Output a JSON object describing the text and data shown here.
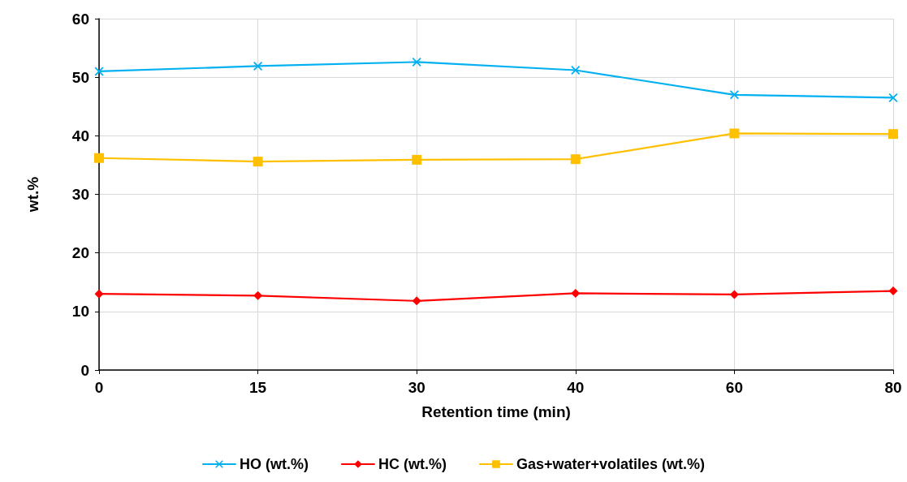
{
  "chart_data": {
    "type": "line",
    "xlabel": "Retention time (min)",
    "ylabel": "wt.%",
    "categories": [
      "0",
      "15",
      "30",
      "40",
      "60",
      "80"
    ],
    "ylim": [
      0,
      60
    ],
    "yticks": [
      0,
      10,
      20,
      30,
      40,
      50,
      60
    ],
    "grid": true,
    "legend": "bottom",
    "series": [
      {
        "name": "HO (wt.%)",
        "color": "#00b0f0",
        "marker": "cross",
        "values": [
          51.0,
          51.9,
          52.6,
          51.2,
          47.0,
          46.5
        ]
      },
      {
        "name": "HC (wt.%)",
        "color": "#ff0000",
        "marker": "diamond",
        "values": [
          13.0,
          12.7,
          11.8,
          13.1,
          12.9,
          13.5
        ]
      },
      {
        "name": "Gas+water+volatiles (wt.%)",
        "color": "#ffc000",
        "marker": "square",
        "values": [
          36.2,
          35.6,
          35.9,
          36.0,
          40.4,
          40.3
        ]
      }
    ]
  }
}
